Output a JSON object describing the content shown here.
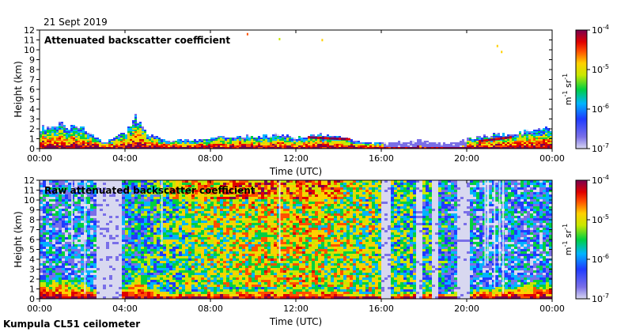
{
  "chart_data": [
    {
      "type": "heatmap",
      "title": "Attenuated backscatter coefficient",
      "date": "21 Sept 2019",
      "xlabel": "Time (UTC)",
      "ylabel": "Height (km)",
      "x_ticks": [
        "00:00",
        "04:00",
        "08:00",
        "12:00",
        "16:00",
        "20:00",
        "00:00"
      ],
      "xlim_hours": [
        0,
        24
      ],
      "y_ticks": [
        0,
        1,
        2,
        3,
        4,
        5,
        6,
        7,
        8,
        9,
        10,
        11,
        12
      ],
      "ylim_km": [
        0,
        12
      ],
      "colorbar": {
        "label": "m-1 sr-1",
        "scale": "log",
        "range": [
          1e-07,
          0.0001
        ],
        "tick_bases": [
          "10",
          "10",
          "10",
          "10"
        ],
        "tick_exponents": [
          "-4",
          "-5",
          "-6",
          "-7"
        ]
      },
      "features": {
        "boundary_layer_top_km": [
          [
            0,
            2.0
          ],
          [
            1,
            2.3
          ],
          [
            2,
            1.9
          ],
          [
            3,
            0.5
          ],
          [
            4,
            1.6
          ],
          [
            4.5,
            3.1
          ],
          [
            5,
            1.4
          ],
          [
            6,
            0.7
          ],
          [
            7,
            0.8
          ],
          [
            8,
            1.0
          ],
          [
            9,
            1.2
          ],
          [
            10,
            1.1
          ],
          [
            11,
            1.3
          ],
          [
            12,
            1.0
          ],
          [
            13,
            1.4
          ],
          [
            14,
            1.1
          ],
          [
            15,
            0.6
          ],
          [
            16,
            0.5
          ],
          [
            17,
            0.6
          ],
          [
            18,
            0.8
          ],
          [
            19,
            0.4
          ],
          [
            20,
            0.9
          ],
          [
            21,
            1.3
          ],
          [
            22,
            1.4
          ],
          [
            23,
            1.8
          ],
          [
            24,
            2.0
          ]
        ],
        "aerosol_layer_km": [
          [
            12.5,
            1.1
          ],
          [
            14.5,
            0.9
          ],
          [
            20.5,
            0.7
          ],
          [
            22.0,
            1.1
          ]
        ],
        "high_cloud_points": [
          [
            9.7,
            11.7
          ],
          [
            11.2,
            11.2
          ],
          [
            13.2,
            11.1
          ],
          [
            21.4,
            10.5
          ],
          [
            21.6,
            9.9
          ]
        ]
      }
    },
    {
      "type": "heatmap",
      "title": "Raw attenuated backscatter coefficient",
      "xlabel": "Time (UTC)",
      "ylabel": "Height (km)",
      "x_ticks": [
        "00:00",
        "04:00",
        "08:00",
        "12:00",
        "16:00",
        "20:00",
        "00:00"
      ],
      "xlim_hours": [
        0,
        24
      ],
      "y_ticks": [
        0,
        1,
        2,
        3,
        4,
        5,
        6,
        7,
        8,
        9,
        10,
        11,
        12
      ],
      "ylim_km": [
        0,
        12
      ],
      "colorbar": {
        "label": "m-1 sr-1",
        "scale": "log",
        "range": [
          1e-07,
          0.0001
        ],
        "tick_bases": [
          "10",
          "10",
          "10",
          "10"
        ],
        "tick_exponents": [
          "-4",
          "-5",
          "-6",
          "-7"
        ]
      },
      "features": {
        "signal_gap_hours": [
          [
            2.6,
            3.8
          ],
          [
            16.0,
            16.4
          ],
          [
            17.5,
            17.8
          ],
          [
            18.3,
            18.6
          ],
          [
            19.5,
            20.0
          ]
        ],
        "noise_band_km": [
          1.8,
          12
        ]
      }
    }
  ],
  "footer": {
    "caption": "Kumpula CL51 ceilometer"
  }
}
